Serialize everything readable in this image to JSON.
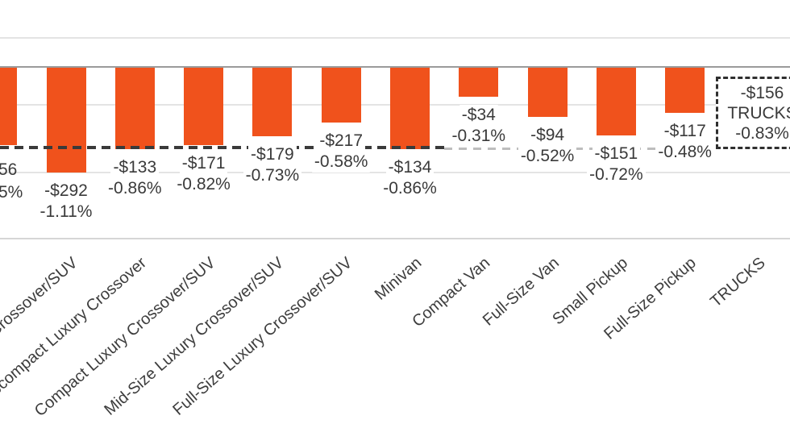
{
  "chart_data": {
    "type": "bar",
    "orientation": "vertical",
    "title": "",
    "notes": "Left edge of chart is cropped; bars extend downward from zero axis. Each bar labeled with dollar change and percent change.",
    "value_axis": {
      "unit": "percent",
      "zero_line_visible": true,
      "tick_labels_visible": false,
      "gridlines": "horizontal, faint"
    },
    "bar_color": "#F0521C",
    "reference_line": {
      "style": "dashed",
      "level_pct": -0.83,
      "dark_segment": "spans left portion of chart",
      "light_segment": "spans van/pickup portion to TRUCKS box"
    },
    "bars": [
      {
        "category": "",
        "category_visible": false,
        "clipped": true,
        "dollar_label": "56",
        "pct_label": "5%",
        "dollars": null,
        "pct": null,
        "visual_pct_estimate": -0.82
      },
      {
        "category": "Full-Size Crossover/SUV",
        "clipped": true,
        "dollar_label": "-$292",
        "pct_label": "-1.11%",
        "dollars": -292,
        "pct": -1.11
      },
      {
        "category": "Subcompact Luxury Crossover",
        "clipped": true,
        "dollar_label": "-$133",
        "pct_label": "-0.86%",
        "dollars": -133,
        "pct": -0.86
      },
      {
        "category": "Compact Luxury Crossover/SUV",
        "clipped": false,
        "dollar_label": "-$171",
        "pct_label": "-0.82%",
        "dollars": -171,
        "pct": -0.82
      },
      {
        "category": "Mid-Size Luxury Crossover/SUV",
        "clipped": false,
        "dollar_label": "-$179",
        "pct_label": "-0.73%",
        "dollars": -179,
        "pct": -0.73
      },
      {
        "category": "Full-Size Luxury Crossover/SUV",
        "clipped": false,
        "dollar_label": "-$217",
        "pct_label": "-0.58%",
        "dollars": -217,
        "pct": -0.58
      },
      {
        "category": "Minivan",
        "clipped": false,
        "dollar_label": "-$134",
        "pct_label": "-0.86%",
        "dollars": -134,
        "pct": -0.86
      },
      {
        "category": "Compact Van",
        "clipped": false,
        "dollar_label": "-$34",
        "pct_label": "-0.31%",
        "dollars": -34,
        "pct": -0.31
      },
      {
        "category": "Full-Size Van",
        "clipped": false,
        "dollar_label": "-$94",
        "pct_label": "-0.52%",
        "dollars": -94,
        "pct": -0.52
      },
      {
        "category": "Small Pickup",
        "clipped": false,
        "dollar_label": "-$151",
        "pct_label": "-0.72%",
        "dollars": -151,
        "pct": -0.72
      },
      {
        "category": "Full-Size Pickup",
        "clipped": false,
        "dollar_label": "-$117",
        "pct_label": "-0.48%",
        "dollars": -117,
        "pct": -0.48
      },
      {
        "category": "TRUCKS",
        "clipped": false,
        "boxed": true,
        "bar_hidden": true,
        "dollar_label": "-$156",
        "pct_label": "-0.83%",
        "dollars": -156,
        "pct": -0.83
      }
    ],
    "annotations": {
      "trucks_box": {
        "lines": [
          "-$156",
          "TRUCKS",
          "-0.83%"
        ],
        "border": "dashed",
        "clipped_right": true
      }
    },
    "colors": {
      "bar": "#F0521C",
      "label_text": "#3a3a3a",
      "gridline": "#e4e4e4",
      "zero_axis": "#9b9b9b",
      "category_axis": "#d6d6d6",
      "dash_dark": "#3a3a3a",
      "dash_light": "#bdbdbd"
    }
  }
}
